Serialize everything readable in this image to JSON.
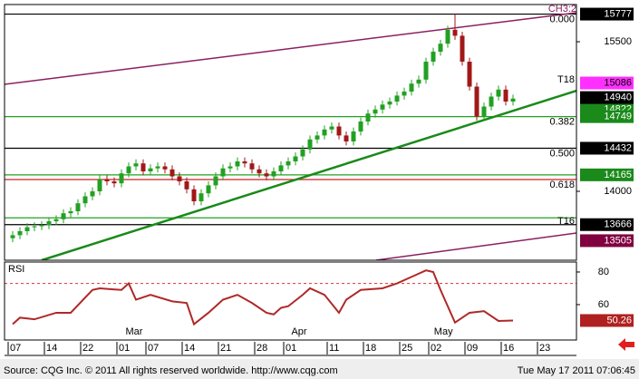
{
  "chart_data": [
    {
      "type": "candlestick",
      "title": "CH3:2",
      "xlim": [
        -1.125,
        77.75
      ],
      "xticks": [
        {
          "value": 0,
          "label": "07"
        },
        {
          "value": 5,
          "label": "14"
        },
        {
          "value": 10,
          "label": "22"
        },
        {
          "value": 15,
          "label": "01"
        },
        {
          "value": 19,
          "label": "07"
        },
        {
          "value": 24,
          "label": "14"
        },
        {
          "value": 29,
          "label": "21"
        },
        {
          "value": 34,
          "label": "28"
        },
        {
          "value": 38,
          "label": "01"
        },
        {
          "value": 44,
          "label": "11"
        },
        {
          "value": 49,
          "label": "18"
        },
        {
          "value": 54,
          "label": "25"
        },
        {
          "value": 58,
          "label": "02"
        },
        {
          "value": 63,
          "label": "09"
        },
        {
          "value": 68,
          "label": "16"
        },
        {
          "value": 73,
          "label": "23"
        }
      ],
      "ylim": [
        13309,
        15873
      ],
      "yticks": [
        14000,
        15500
      ],
      "up_color": "#22a022",
      "down_color": "#a01818",
      "open": [
        13530,
        13560,
        13600,
        13640,
        13650,
        13660,
        13700,
        13720,
        13780,
        13800,
        13880,
        13950,
        14000,
        14120,
        14100,
        14080,
        14180,
        14250,
        14280,
        14200,
        14230,
        14250,
        14220,
        14150,
        14100,
        14020,
        13900,
        13980,
        14060,
        14150,
        14230,
        14250,
        14300,
        14280,
        14220,
        14180,
        14150,
        14200,
        14260,
        14300,
        14350,
        14420,
        14520,
        14560,
        14620,
        14650,
        14560,
        14500,
        14600,
        14700,
        14780,
        14820,
        14870,
        14900,
        14960,
        15000,
        15080,
        15120,
        15300,
        15400,
        15480,
        15620,
        15560,
        15300,
        15050,
        14750,
        14850,
        14950,
        15020,
        14900
      ],
      "high": [
        13600,
        13640,
        13680,
        13690,
        13700,
        13740,
        13760,
        13820,
        13840,
        13920,
        13990,
        14040,
        14160,
        14160,
        14140,
        14220,
        14290,
        14320,
        14320,
        14270,
        14290,
        14290,
        14260,
        14190,
        14140,
        14060,
        14020,
        14100,
        14190,
        14270,
        14290,
        14340,
        14340,
        14320,
        14260,
        14220,
        14240,
        14300,
        14340,
        14390,
        14460,
        14560,
        14600,
        14660,
        14690,
        14690,
        14600,
        14640,
        14740,
        14820,
        14860,
        14910,
        14940,
        15000,
        15040,
        15120,
        15160,
        15340,
        15440,
        15520,
        15660,
        15777,
        15600,
        15340,
        15090,
        14890,
        14990,
        15060,
        15060,
        14970
      ],
      "low": [
        13490,
        13520,
        13560,
        13600,
        13610,
        13620,
        13660,
        13680,
        13740,
        13760,
        13840,
        13910,
        13960,
        14060,
        14040,
        14040,
        14140,
        14210,
        14160,
        14160,
        14190,
        14180,
        14110,
        14060,
        13980,
        13860,
        13860,
        13940,
        14020,
        14110,
        14190,
        14210,
        14240,
        14180,
        14140,
        14110,
        14110,
        14160,
        14220,
        14260,
        14310,
        14380,
        14480,
        14520,
        14580,
        14520,
        14460,
        14460,
        14560,
        14660,
        14740,
        14780,
        14830,
        14860,
        14920,
        14960,
        15040,
        15080,
        15260,
        15360,
        15440,
        15520,
        15260,
        15010,
        14710,
        14710,
        14810,
        14910,
        14860,
        14860
      ],
      "close": [
        13560,
        13600,
        13640,
        13650,
        13660,
        13700,
        13720,
        13780,
        13800,
        13880,
        13950,
        14000,
        14120,
        14100,
        14080,
        14180,
        14250,
        14280,
        14200,
        14230,
        14250,
        14220,
        14150,
        14100,
        14020,
        13900,
        13980,
        14060,
        14150,
        14230,
        14250,
        14300,
        14280,
        14220,
        14180,
        14150,
        14200,
        14260,
        14300,
        14350,
        14420,
        14520,
        14560,
        14620,
        14650,
        14560,
        14500,
        14600,
        14700,
        14780,
        14820,
        14870,
        14900,
        14960,
        15000,
        15080,
        15120,
        15300,
        15400,
        15480,
        15620,
        15560,
        15300,
        15050,
        14750,
        14850,
        14950,
        15020,
        14900,
        14930
      ],
      "levels": [
        {
          "value": 15777,
          "color": "#000000",
          "label": "0.000"
        },
        {
          "value": 14749,
          "color": "#22a022",
          "label": "0.382"
        },
        {
          "value": 14432,
          "color": "#000000",
          "label": "0.500"
        },
        {
          "value": 14165,
          "color": "#22a022"
        },
        {
          "value": 14118,
          "color": "#cc2020",
          "label": "0.618"
        },
        {
          "value": 13734,
          "color": "#22a022"
        },
        {
          "value": 13666,
          "color": "#000000"
        }
      ],
      "annotations": [
        {
          "text": "T18",
          "value": 15118
        },
        {
          "text": "T16",
          "value": 13700
        }
      ],
      "trendlines": [
        {
          "color": "#1a8a1a",
          "x": [
            4,
            77.75
          ],
          "values": [
            13309,
            15009
          ]
        },
        {
          "color": "#8a2060",
          "x": [
            -1.125,
            77.75
          ],
          "values": [
            15073,
            15791
          ]
        },
        {
          "color": "#8a2060",
          "x": [
            50.1,
            77.75
          ],
          "values": [
            13309,
            13582
          ]
        }
      ],
      "price_boxes": [
        {
          "value": 15777,
          "bg": "#000000",
          "fg": "#ffffff"
        },
        {
          "value": 15086,
          "bg": "#ff30ff",
          "fg": "#000000"
        },
        {
          "value": 14822,
          "bg": "#1a8a1a",
          "fg": "#ffffff"
        },
        {
          "value": 14940,
          "bg": "#000000",
          "fg": "#ffffff"
        },
        {
          "value": 14749,
          "bg": "#1a8a1a",
          "fg": "#ffffff"
        },
        {
          "value": 14432,
          "bg": "#000000",
          "fg": "#ffffff"
        },
        {
          "value": 14165,
          "bg": "#1a8a1a",
          "fg": "#ffffff"
        },
        {
          "value": 13666,
          "bg": "#000000",
          "fg": "#ffffff"
        },
        {
          "value": 13505,
          "bg": "#800040",
          "fg": "#ffffff"
        }
      ]
    },
    {
      "type": "line",
      "title": "RSI",
      "color": "#b02828",
      "x": [
        0,
        1,
        3,
        6,
        8,
        11,
        12,
        15,
        16,
        17,
        19,
        22,
        24,
        25,
        27,
        29,
        31,
        33,
        35,
        36,
        37,
        38,
        40,
        41,
        43,
        45,
        46,
        48,
        51,
        53,
        55,
        57,
        58,
        59,
        61,
        63,
        65,
        67,
        69
      ],
      "values": [
        48,
        52,
        51,
        55,
        55,
        69,
        70,
        69,
        73,
        63,
        66,
        62,
        61,
        48,
        55,
        63,
        66,
        61,
        55,
        54,
        58,
        59,
        66,
        70,
        66,
        55,
        63,
        69,
        70,
        73,
        77,
        81,
        80,
        69,
        49,
        55,
        56,
        50,
        50.26
      ],
      "ylim": [
        38.3,
        86.1
      ],
      "yticks": [
        60,
        80
      ],
      "ref_lines": [
        {
          "value": 73,
          "color": "#e03030"
        }
      ],
      "month_labels": [
        {
          "value": 16.75,
          "label": "Mar"
        },
        {
          "value": 39.5,
          "label": "Apr"
        },
        {
          "value": 59.4,
          "label": "May"
        }
      ]
    }
  ],
  "footer": {
    "source": "Source: CQG Inc. © 2011 All rights reserved worldwide. http://www.cqg.com",
    "timestamp": "Tue May 17 2011 07:06:45"
  }
}
